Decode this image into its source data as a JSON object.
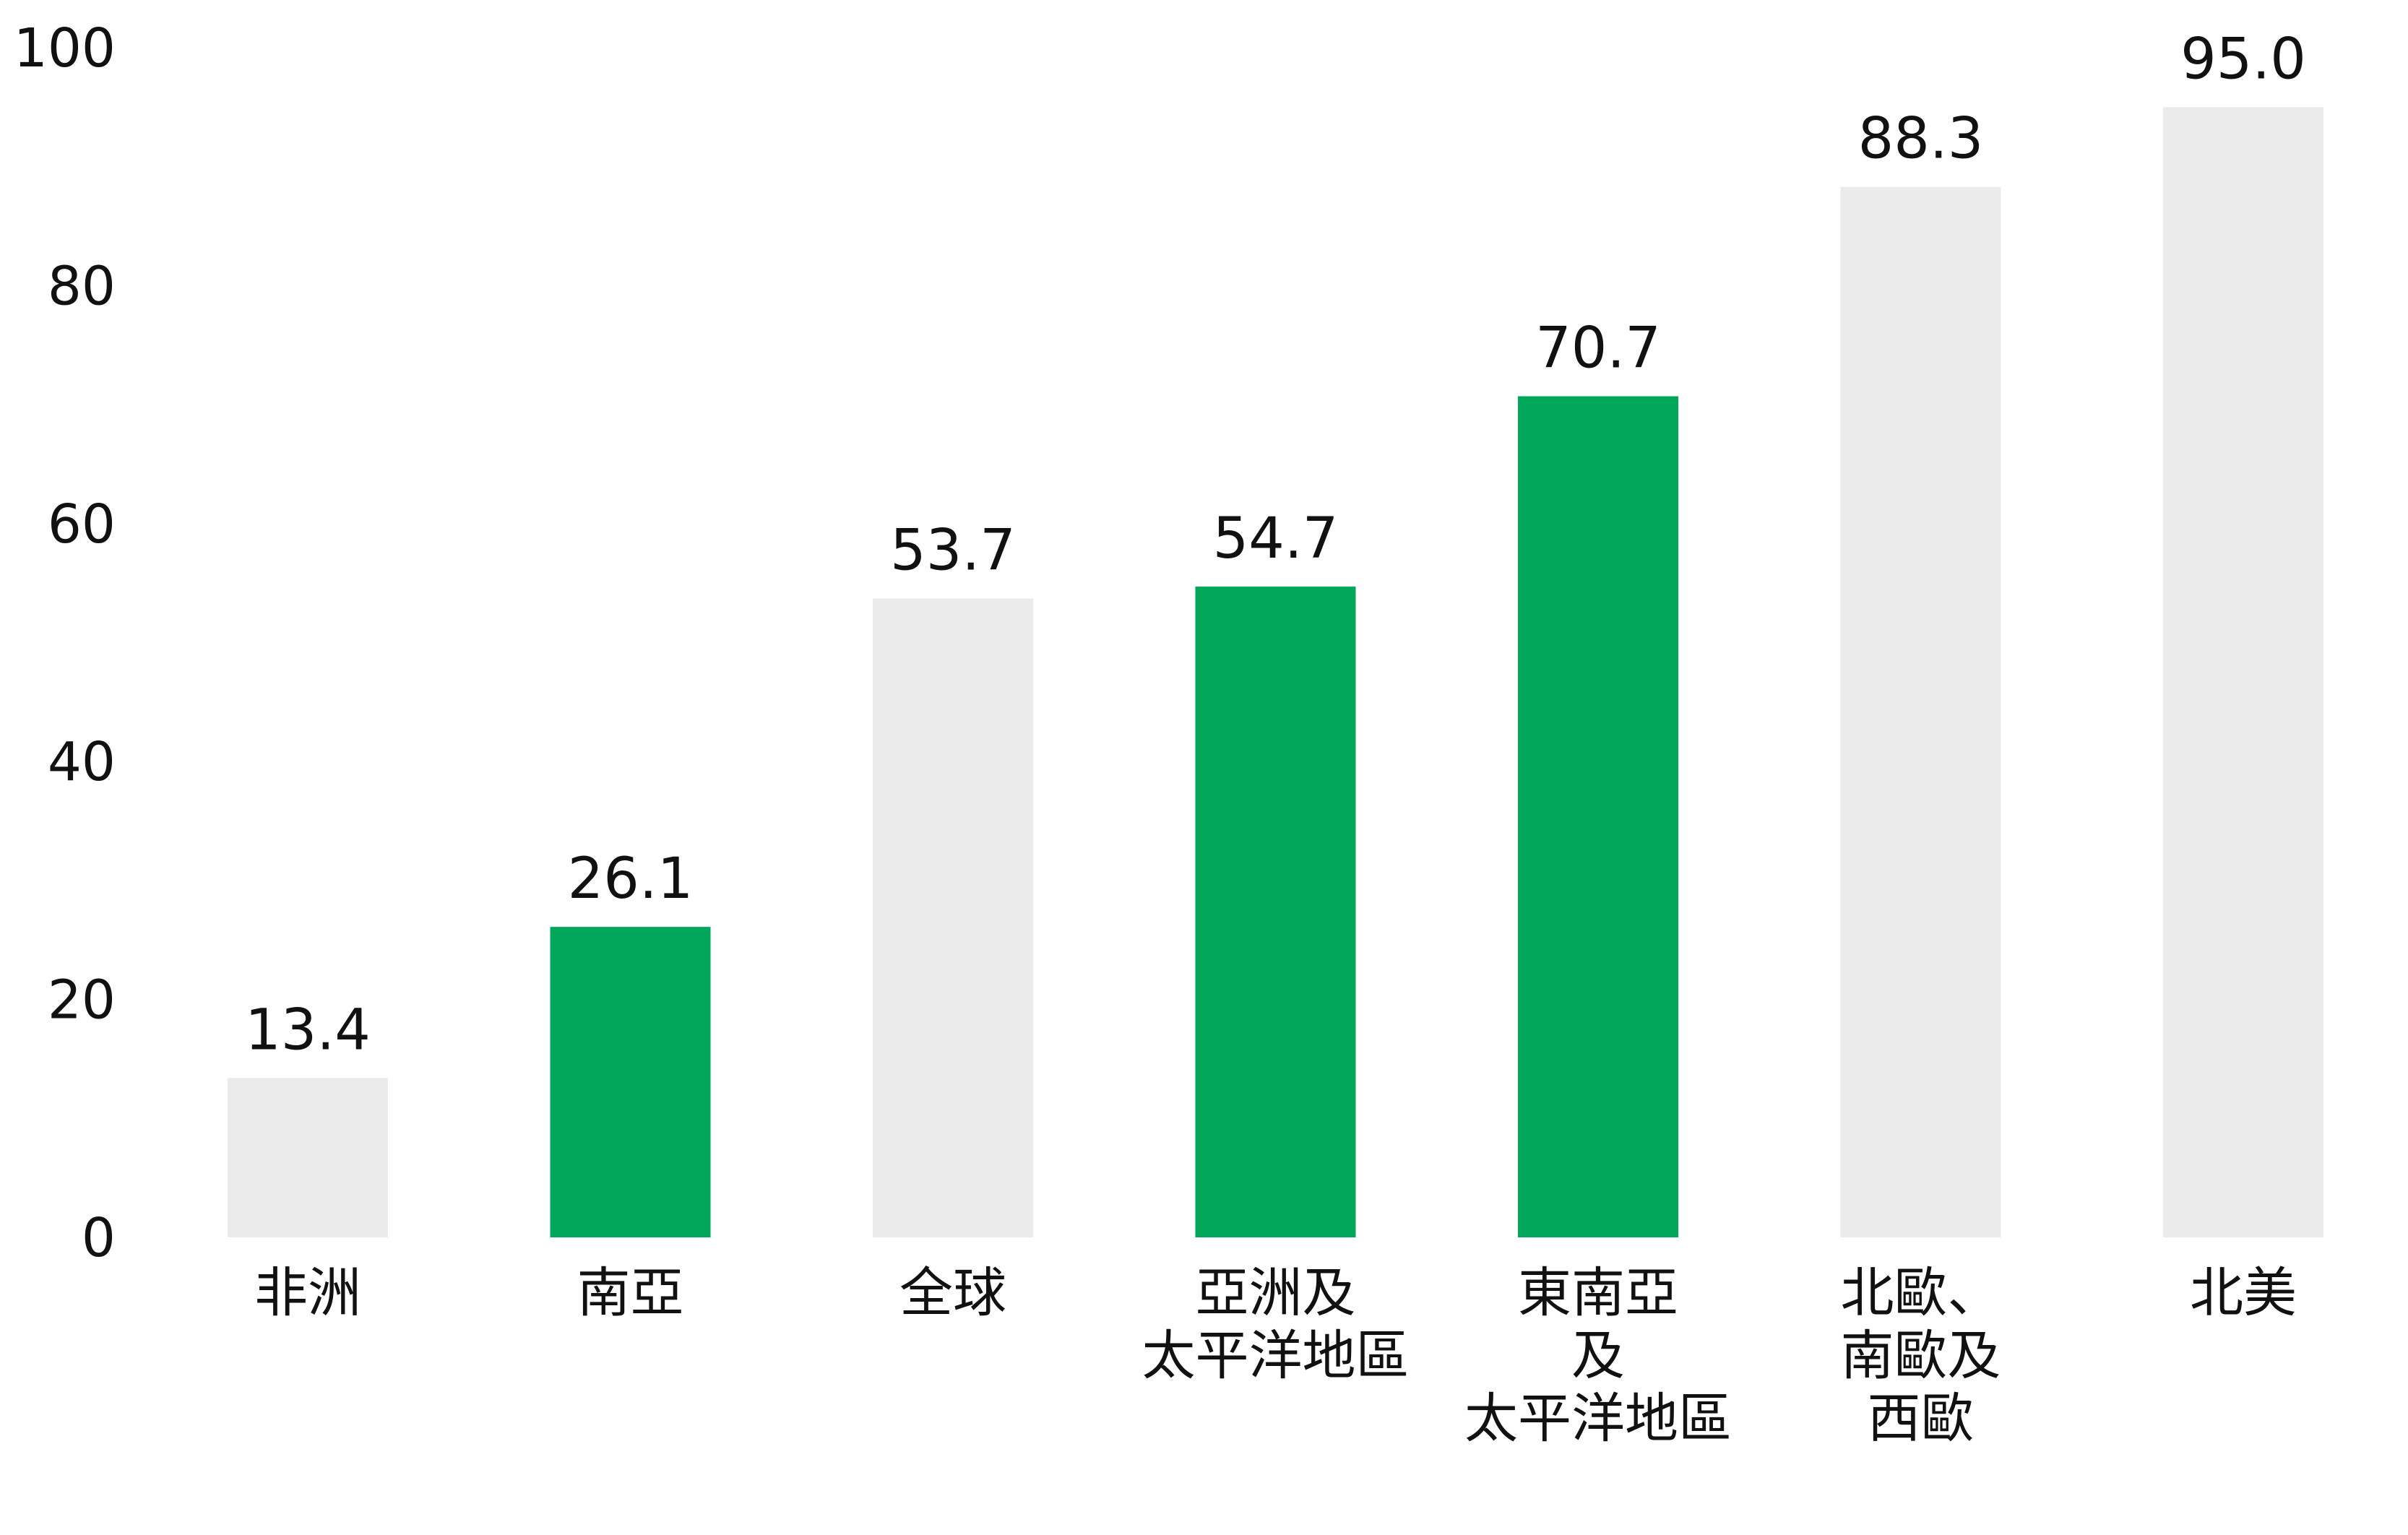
{
  "chart_data": {
    "type": "bar",
    "title": "",
    "xlabel": "",
    "ylabel": "",
    "ylim": [
      0,
      100
    ],
    "yticks": [
      0,
      20,
      40,
      60,
      80,
      100
    ],
    "grid": false,
    "categories": [
      [
        "非洲"
      ],
      [
        "南亞"
      ],
      [
        "全球"
      ],
      [
        "亞洲及",
        "太平洋地區"
      ],
      [
        "東南亞",
        "及",
        "太平洋地區"
      ],
      [
        "北歐、",
        "南歐及",
        "西歐"
      ],
      [
        "北美"
      ]
    ],
    "values": [
      13.4,
      26.1,
      53.7,
      54.7,
      70.7,
      88.3,
      95.0
    ],
    "value_labels": [
      "13.4",
      "26.1",
      "53.7",
      "54.7",
      "70.7",
      "88.3",
      "95.0"
    ],
    "bar_colors": [
      "#ebebeb",
      "#00a65a",
      "#ebebeb",
      "#00a65a",
      "#00a65a",
      "#ebebeb",
      "#ebebeb"
    ]
  }
}
